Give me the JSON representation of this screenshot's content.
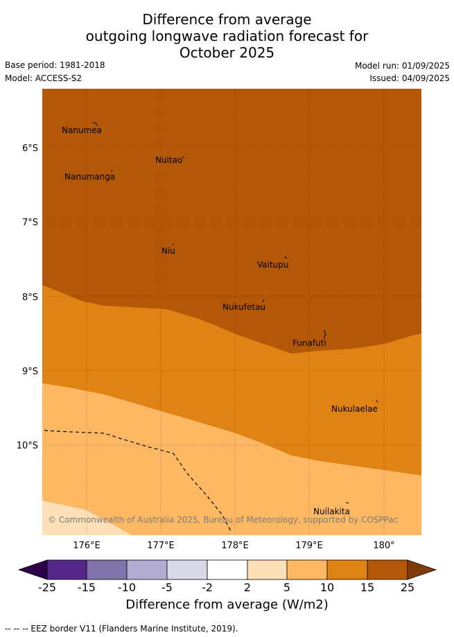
{
  "title": {
    "line1": "Difference from average",
    "line2": "outgoing longwave radiation forecast for",
    "line3": "October 2025"
  },
  "meta": {
    "base_period": "Base period: 1981-2018",
    "model": "Model: ACCESS-S2",
    "model_run": "Model run: 01/09/2025",
    "issued": "Issued: 04/09/2025"
  },
  "map": {
    "lat_labels": [
      "6°S",
      "7°S",
      "8°S",
      "9°S",
      "10°S"
    ],
    "lon_labels": [
      "176°E",
      "177°E",
      "178°E",
      "179°E",
      "180°"
    ],
    "places": [
      "Nanumea",
      "Nuitao",
      "Nanumanga",
      "Niu",
      "Vaitupu",
      "Nukufetau",
      "Funafuti",
      "Nukulaelae",
      "Nuilakita"
    ],
    "copyright": "© Commonwealth of Australia 2025, Bureau of Meteorology, supported by COSPPac",
    "band_colors": [
      "#b35806",
      "#e08214",
      "#fdb863",
      "#fee0b6"
    ]
  },
  "colorbar": {
    "ticks": [
      "-25",
      "-15",
      "-10",
      "-5",
      "-2",
      "2",
      "5",
      "10",
      "15",
      "25"
    ],
    "colors": [
      "#2d004b",
      "#542788",
      "#8073ac",
      "#b2abd2",
      "#d8daeb",
      "#ffffff",
      "#fee0b6",
      "#fdb863",
      "#e08214",
      "#b35806",
      "#7f3b08"
    ],
    "label": "Difference from average (W/m2)"
  },
  "footnote": "-- -- -- EEZ border V11 (Flanders Marine Institute, 2019)."
}
